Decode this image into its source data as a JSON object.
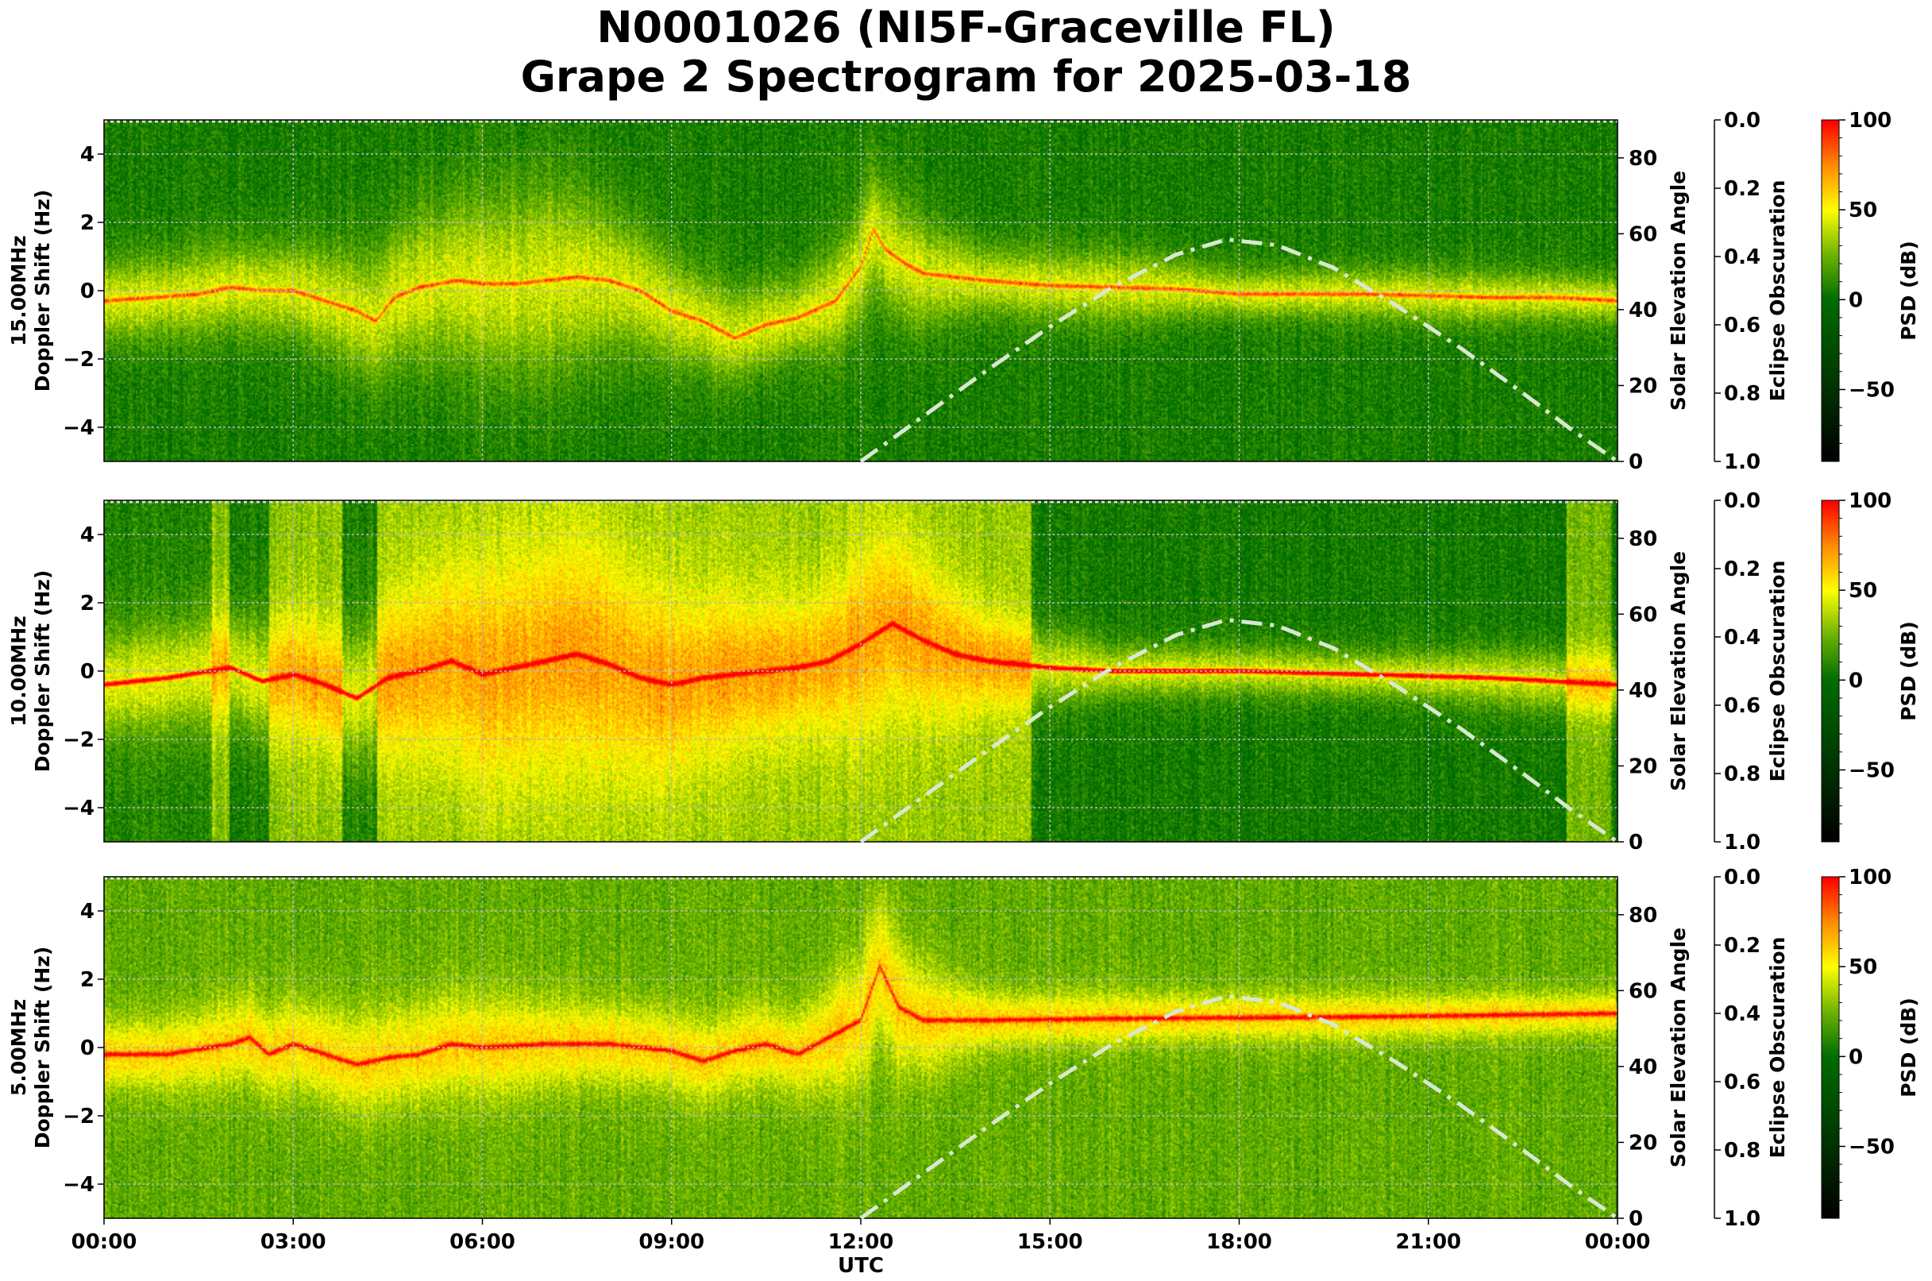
{
  "title": {
    "line1": "N0001026 (NI5F-Graceville FL)",
    "line2": "Grape 2 Spectrogram for 2025-03-18"
  },
  "chart_data": {
    "type": "heatmap",
    "xlabel": "UTC",
    "x_ticks": [
      "00:00",
      "03:00",
      "06:00",
      "09:00",
      "12:00",
      "15:00",
      "18:00",
      "21:00",
      "00:00"
    ],
    "x_range_hours": [
      0,
      24
    ],
    "grid": true,
    "colorbar": {
      "label": "PSD (dB)",
      "range": [
        -90,
        100
      ],
      "ticks": [
        100,
        50,
        0,
        -50
      ],
      "tick_labels": [
        "100",
        "50",
        "0",
        "−50"
      ],
      "colormap": [
        {
          "v": -90,
          "color": "#000000"
        },
        {
          "v": -50,
          "color": "#003200"
        },
        {
          "v": 0,
          "color": "#006e00"
        },
        {
          "v": 25,
          "color": "#6eb400"
        },
        {
          "v": 50,
          "color": "#ffff00"
        },
        {
          "v": 75,
          "color": "#ff8c00"
        },
        {
          "v": 100,
          "color": "#ff0000"
        }
      ]
    },
    "right_axis": {
      "label": "Solar Elevation Angle",
      "range": [
        0,
        90
      ],
      "ticks": [
        "0",
        "20",
        "40",
        "60",
        "80"
      ]
    },
    "eclipse_axis": {
      "label": "Eclipse Obscuration",
      "range": [
        0.0,
        1.0
      ],
      "inverted": true,
      "ticks": [
        "0.0",
        "0.2",
        "0.4",
        "0.6",
        "0.8",
        "1.0"
      ]
    },
    "solar_elevation": {
      "style": "dash-dot",
      "color": "#d8e8d0",
      "points": [
        [
          12,
          0
        ],
        [
          13,
          12
        ],
        [
          14,
          24
        ],
        [
          15,
          35.5
        ],
        [
          16,
          46
        ],
        [
          17,
          54.5
        ],
        [
          17.8,
          58.5
        ],
        [
          18.6,
          57
        ],
        [
          19.5,
          51
        ],
        [
          20.5,
          41
        ],
        [
          21.5,
          30
        ],
        [
          22.5,
          18
        ],
        [
          23.3,
          8
        ],
        [
          24,
          0
        ]
      ]
    },
    "panels": [
      {
        "ylabel_line1": "15.00MHz",
        "ylabel_line2": "Doppler Shift (Hz)",
        "y_range": [
          -5,
          5
        ],
        "y_ticks": [
          "4",
          "2",
          "0",
          "−2",
          "−4"
        ],
        "background_db": [
          [
            0,
            24,
            5
          ]
        ],
        "main_trace": [
          [
            0,
            -0.3
          ],
          [
            0.8,
            -0.2
          ],
          [
            1.5,
            -0.1
          ],
          [
            2,
            0.1
          ],
          [
            2.5,
            0
          ],
          [
            3,
            0
          ],
          [
            3.5,
            -0.3
          ],
          [
            4,
            -0.6
          ],
          [
            4.3,
            -0.9
          ],
          [
            4.6,
            -0.2
          ],
          [
            5,
            0.1
          ],
          [
            5.6,
            0.3
          ],
          [
            6,
            0.2
          ],
          [
            6.5,
            0.2
          ],
          [
            7,
            0.3
          ],
          [
            7.5,
            0.4
          ],
          [
            8,
            0.3
          ],
          [
            8.5,
            0
          ],
          [
            9,
            -0.6
          ],
          [
            9.5,
            -0.9
          ],
          [
            10,
            -1.4
          ],
          [
            10.5,
            -1
          ],
          [
            11,
            -0.8
          ],
          [
            11.6,
            -0.3
          ],
          [
            12,
            0.7
          ],
          [
            12.2,
            1.8
          ],
          [
            12.4,
            1.2
          ],
          [
            12.7,
            0.8
          ],
          [
            13,
            0.5
          ],
          [
            14,
            0.3
          ],
          [
            15,
            0.15
          ],
          [
            16,
            0.1
          ],
          [
            17,
            0.05
          ],
          [
            18,
            -0.1
          ],
          [
            19,
            -0.1
          ],
          [
            20,
            -0.1
          ],
          [
            21,
            -0.15
          ],
          [
            22,
            -0.2
          ],
          [
            23,
            -0.2
          ],
          [
            24,
            -0.3
          ]
        ],
        "trace_peak_db": 50,
        "spread": [
          [
            0,
            1.2
          ],
          [
            3,
            1.4
          ],
          [
            5.5,
            2.5
          ],
          [
            7,
            3
          ],
          [
            8,
            2.2
          ],
          [
            9,
            1.6
          ],
          [
            11,
            1.2
          ],
          [
            12.3,
            2
          ],
          [
            14,
            1
          ],
          [
            16,
            1.1
          ],
          [
            18,
            0.7
          ],
          [
            21,
            0.8
          ],
          [
            24,
            0.7
          ]
        ]
      },
      {
        "ylabel_line1": "10.00MHz",
        "ylabel_line2": "Doppler Shift (Hz)",
        "y_range": [
          -5,
          5
        ],
        "y_ticks": [
          "4",
          "2",
          "0",
          "−2",
          "−4"
        ],
        "background_db": [
          [
            0,
            1.7,
            8
          ],
          [
            1.7,
            1.97,
            28
          ],
          [
            1.97,
            2.6,
            6
          ],
          [
            2.6,
            3.77,
            30
          ],
          [
            3.77,
            4.32,
            6
          ],
          [
            4.32,
            14.7,
            32
          ],
          [
            14.7,
            23.2,
            4
          ],
          [
            23.2,
            23.9,
            26
          ],
          [
            23.9,
            24,
            4
          ]
        ],
        "main_trace": [
          [
            0,
            -0.4
          ],
          [
            1,
            -0.2
          ],
          [
            2,
            0.1
          ],
          [
            2.5,
            -0.3
          ],
          [
            3,
            -0.1
          ],
          [
            3.5,
            -0.4
          ],
          [
            4,
            -0.8
          ],
          [
            4.5,
            -0.2
          ],
          [
            5,
            0
          ],
          [
            5.5,
            0.3
          ],
          [
            6,
            -0.1
          ],
          [
            7,
            0.3
          ],
          [
            7.5,
            0.5
          ],
          [
            8,
            0.2
          ],
          [
            8.5,
            -0.2
          ],
          [
            9,
            -0.4
          ],
          [
            9.5,
            -0.2
          ],
          [
            10,
            -0.1
          ],
          [
            11,
            0.1
          ],
          [
            11.5,
            0.3
          ],
          [
            12,
            0.8
          ],
          [
            12.5,
            1.4
          ],
          [
            13,
            0.9
          ],
          [
            13.5,
            0.5
          ],
          [
            14,
            0.3
          ],
          [
            15,
            0.1
          ],
          [
            16,
            0
          ],
          [
            18,
            0
          ],
          [
            20,
            -0.1
          ],
          [
            22,
            -0.2
          ],
          [
            24,
            -0.4
          ]
        ],
        "trace_peak_db": 85,
        "spread": [
          [
            0,
            1.5
          ],
          [
            4,
            2
          ],
          [
            6,
            3.5
          ],
          [
            8,
            3.5
          ],
          [
            9.5,
            2.5
          ],
          [
            11,
            2
          ],
          [
            12.3,
            3
          ],
          [
            14,
            1.5
          ],
          [
            16,
            0.8
          ],
          [
            20,
            0.7
          ],
          [
            24,
            1
          ]
        ]
      },
      {
        "ylabel_line1": "5.00MHz",
        "ylabel_line2": "Doppler Shift (Hz)",
        "y_range": [
          -5,
          5
        ],
        "y_ticks": [
          "4",
          "2",
          "0",
          "−2",
          "−4"
        ],
        "background_db": [
          [
            0,
            24,
            22
          ]
        ],
        "main_trace": [
          [
            0,
            -0.2
          ],
          [
            1,
            -0.2
          ],
          [
            2,
            0.1
          ],
          [
            2.3,
            0.3
          ],
          [
            2.6,
            -0.2
          ],
          [
            3,
            0.1
          ],
          [
            3.5,
            -0.2
          ],
          [
            4,
            -0.5
          ],
          [
            4.5,
            -0.3
          ],
          [
            5,
            -0.2
          ],
          [
            5.5,
            0.1
          ],
          [
            6,
            0
          ],
          [
            7,
            0.1
          ],
          [
            8,
            0.1
          ],
          [
            9,
            -0.1
          ],
          [
            9.5,
            -0.4
          ],
          [
            10,
            -0.1
          ],
          [
            10.5,
            0.1
          ],
          [
            11,
            -0.2
          ],
          [
            11.5,
            0.3
          ],
          [
            12,
            0.8
          ],
          [
            12.3,
            2.4
          ],
          [
            12.6,
            1.2
          ],
          [
            13,
            0.8
          ],
          [
            14,
            0.8
          ],
          [
            16,
            0.85
          ],
          [
            20,
            0.9
          ],
          [
            24,
            1
          ]
        ],
        "trace_peak_db": 70,
        "spread": [
          [
            0,
            1
          ],
          [
            4,
            1.5
          ],
          [
            6,
            1.5
          ],
          [
            8,
            1.2
          ],
          [
            11,
            1.2
          ],
          [
            12.3,
            2.2
          ],
          [
            14,
            0.8
          ],
          [
            24,
            0.6
          ]
        ]
      }
    ]
  }
}
